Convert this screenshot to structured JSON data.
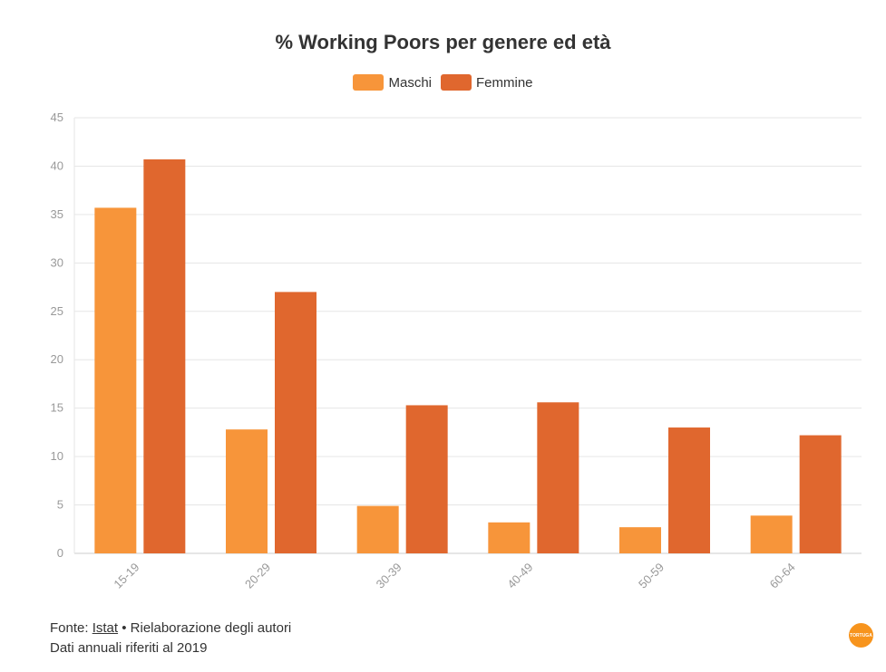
{
  "colors": {
    "maschi": "#f7953a",
    "femmine": "#e0672e",
    "grid": "#e6e6e6",
    "axis": "#cccccc"
  },
  "legend": {
    "items": [
      {
        "label": "Maschi"
      },
      {
        "label": "Femmine"
      }
    ]
  },
  "footer": {
    "source_prefix": "Fonte:",
    "source_link": "Istat",
    "source_suffix": "• Rielaborazione degli autori",
    "note": "Dati annuali riferiti al 2019"
  },
  "logo": {
    "text": "TORTUGA"
  },
  "chart_data": {
    "type": "bar",
    "title": "% Working Poors per genere ed età",
    "xlabel": "",
    "ylabel": "",
    "categories": [
      "15-19",
      "20-29",
      "30-39",
      "40-49",
      "50-59",
      "60-64"
    ],
    "series": [
      {
        "name": "Maschi",
        "values": [
          35.7,
          12.8,
          4.9,
          3.2,
          2.7,
          3.9
        ]
      },
      {
        "name": "Femmine",
        "values": [
          40.7,
          27.0,
          15.3,
          15.6,
          13.0,
          12.2
        ]
      }
    ],
    "ylim": [
      0,
      45
    ],
    "yticks": [
      0,
      5,
      10,
      15,
      20,
      25,
      30,
      35,
      40,
      45
    ],
    "grid": true,
    "legend_position": "top-center"
  }
}
